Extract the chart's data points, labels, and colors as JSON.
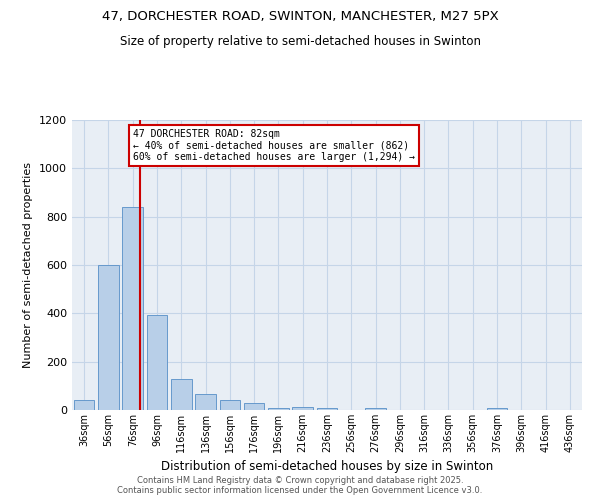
{
  "title_line1": "47, DORCHESTER ROAD, SWINTON, MANCHESTER, M27 5PX",
  "title_line2": "Size of property relative to semi-detached houses in Swinton",
  "xlabel": "Distribution of semi-detached houses by size in Swinton",
  "ylabel": "Number of semi-detached properties",
  "bins": [
    "36sqm",
    "56sqm",
    "76sqm",
    "96sqm",
    "116sqm",
    "136sqm",
    "156sqm",
    "176sqm",
    "196sqm",
    "216sqm",
    "236sqm",
    "256sqm",
    "276sqm",
    "296sqm",
    "316sqm",
    "336sqm",
    "356sqm",
    "376sqm",
    "396sqm",
    "416sqm",
    "436sqm"
  ],
  "values": [
    40,
    600,
    840,
    395,
    130,
    65,
    42,
    27,
    8,
    13,
    10,
    0,
    7,
    0,
    0,
    0,
    0,
    10,
    0,
    0,
    0
  ],
  "bar_color": "#b8cfe8",
  "bar_edge_color": "#6699cc",
  "property_size": 82,
  "annotation_title": "47 DORCHESTER ROAD: 82sqm",
  "annotation_line2": "← 40% of semi-detached houses are smaller (862)",
  "annotation_line3": "60% of semi-detached houses are larger (1,294) →",
  "red_line_color": "#cc0000",
  "ylim": [
    0,
    1200
  ],
  "yticks": [
    0,
    200,
    400,
    600,
    800,
    1000,
    1200
  ],
  "footer_line1": "Contains HM Land Registry data © Crown copyright and database right 2025.",
  "footer_line2": "Contains public sector information licensed under the Open Government Licence v3.0.",
  "plot_bg_color": "#e8eef5",
  "grid_color": "#c5d5e8"
}
